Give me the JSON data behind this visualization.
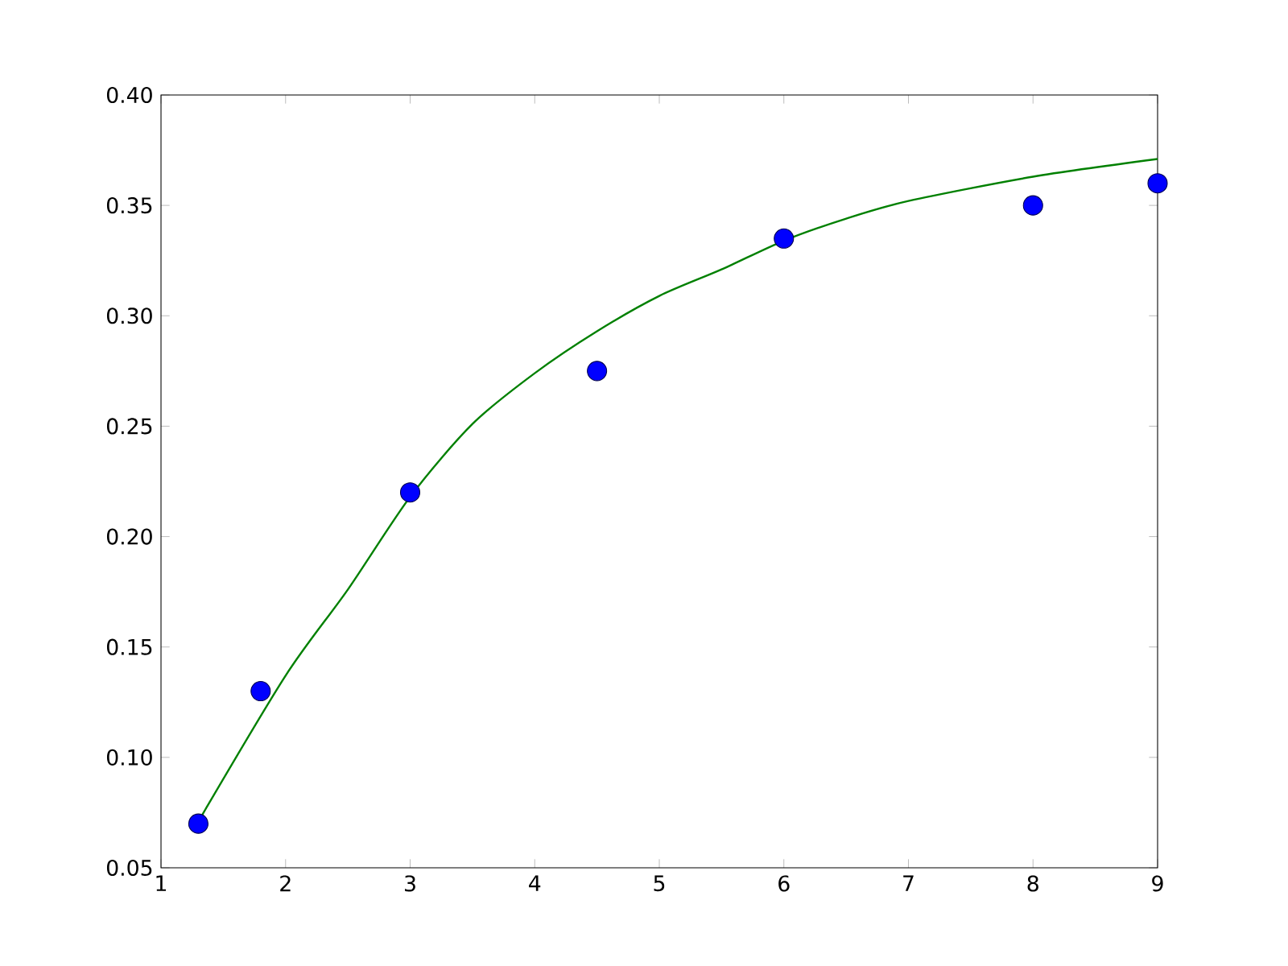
{
  "chart_data": {
    "type": "scatter",
    "xlim": [
      1,
      9
    ],
    "ylim": [
      0.05,
      0.4
    ],
    "xticks": [
      1,
      2,
      3,
      4,
      5,
      6,
      7,
      8,
      9
    ],
    "yticks": [
      {
        "value": 0.05,
        "label": "0.05"
      },
      {
        "value": 0.1,
        "label": "0.10"
      },
      {
        "value": 0.15,
        "label": "0.15"
      },
      {
        "value": 0.2,
        "label": "0.20"
      },
      {
        "value": 0.25,
        "label": "0.25"
      },
      {
        "value": 0.3,
        "label": "0.30"
      },
      {
        "value": 0.35,
        "label": "0.35"
      },
      {
        "value": 0.4,
        "label": "0.40"
      }
    ],
    "grid": false,
    "series": [
      {
        "color": "#0000ff",
        "marker": "circle",
        "x": [
          1.3,
          1.8,
          3,
          4.5,
          6,
          8,
          9
        ],
        "values": [
          0.07,
          0.13,
          0.22,
          0.275,
          0.335,
          0.35,
          0.36
        ]
      },
      {
        "type": "line",
        "color": "#008000",
        "marker": "none",
        "line_style": "solid",
        "x": [
          1.3,
          2,
          2.5,
          3,
          3.5,
          4,
          4.5,
          5,
          5.5,
          6,
          6.5,
          7,
          8,
          9
        ],
        "values": [
          0.071,
          0.137,
          0.176,
          0.218,
          0.251,
          0.274,
          0.293,
          0.309,
          0.321,
          0.334,
          0.344,
          0.352,
          0.363,
          0.371
        ]
      }
    ]
  }
}
